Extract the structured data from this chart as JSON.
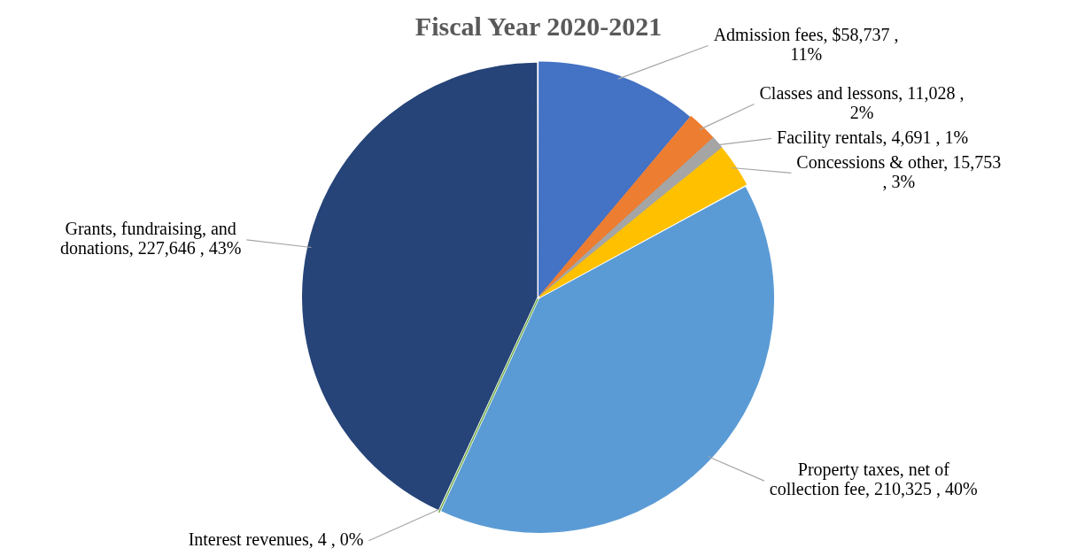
{
  "chart_data": {
    "type": "pie",
    "title": "Fiscal Year 2020-2021",
    "categories": [
      "Admission fees",
      "Classes and lessons",
      "Facility rentals",
      "Concessions & other",
      "Property taxes, net of collection fee",
      "Interest revenues",
      "Grants, fundraising, and donations"
    ],
    "values": [
      58737,
      11028,
      4691,
      15753,
      210325,
      4,
      227646
    ],
    "value_labels": [
      "$58,737 , 11%",
      "11,028 , 2%",
      "4,691 , 1%",
      "15,753 , 3%",
      "210,325 , 40%",
      "4 , 0%",
      "227,646 , 43%"
    ],
    "colors": [
      "#4472c4",
      "#ed7d31",
      "#a5a5a5",
      "#ffc000",
      "#5b9bd5",
      "#70ad47",
      "#264478"
    ],
    "legend": false
  }
}
